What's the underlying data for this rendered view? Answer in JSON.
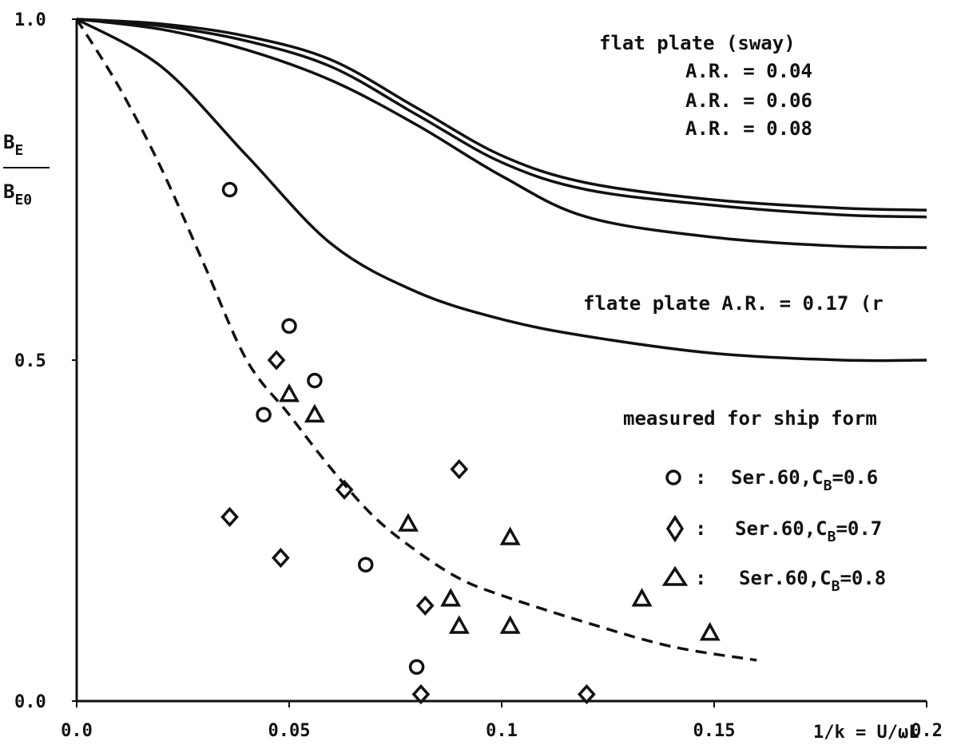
{
  "chart_data": {
    "type": "scatter",
    "xlim": [
      0.0,
      0.2
    ],
    "ylim": [
      0.0,
      1.0
    ],
    "x_ticks": [
      {
        "value": 0.0,
        "label": "0.0"
      },
      {
        "value": 0.05,
        "label": "0.05"
      },
      {
        "value": 0.1,
        "label": "0.1"
      },
      {
        "value": 0.15,
        "label": "0.15"
      },
      {
        "value": 0.2,
        "label": "0.2"
      }
    ],
    "y_ticks": [
      {
        "value": 0.0,
        "label": "0.0"
      },
      {
        "value": 0.5,
        "label": "0.5"
      },
      {
        "value": 1.0,
        "label": "1.0"
      }
    ],
    "xlabel": "1/k = U/ωL",
    "ylabel": {
      "numerator": "B",
      "num_sub": "E",
      "denominator": "B",
      "den_sub": "E0"
    },
    "curves": [
      {
        "name": "A.R. = 0.04",
        "style": "solid",
        "x": [
          0.0,
          0.02,
          0.04,
          0.06,
          0.08,
          0.1,
          0.12,
          0.15,
          0.18,
          0.2
        ],
        "y": [
          1.0,
          0.993,
          0.975,
          0.94,
          0.87,
          0.8,
          0.76,
          0.735,
          0.723,
          0.72
        ]
      },
      {
        "name": "A.R. = 0.06",
        "style": "solid",
        "x": [
          0.0,
          0.02,
          0.04,
          0.06,
          0.08,
          0.1,
          0.12,
          0.15,
          0.18,
          0.2
        ],
        "y": [
          1.0,
          0.99,
          0.968,
          0.93,
          0.86,
          0.79,
          0.75,
          0.727,
          0.713,
          0.71
        ]
      },
      {
        "name": "A.R. = 0.08",
        "style": "solid",
        "x": [
          0.0,
          0.02,
          0.04,
          0.06,
          0.08,
          0.1,
          0.12,
          0.15,
          0.18,
          0.2
        ],
        "y": [
          1.0,
          0.985,
          0.955,
          0.91,
          0.845,
          0.77,
          0.71,
          0.68,
          0.667,
          0.665
        ]
      },
      {
        "name": "flate plate A.R. = 0.17",
        "style": "solid",
        "x": [
          0.0,
          0.02,
          0.04,
          0.06,
          0.08,
          0.1,
          0.12,
          0.15,
          0.18,
          0.2
        ],
        "y": [
          1.0,
          0.93,
          0.8,
          0.67,
          0.6,
          0.56,
          0.535,
          0.51,
          0.5,
          0.5
        ]
      },
      {
        "name": "",
        "style": "dashed",
        "x": [
          0.0,
          0.01,
          0.02,
          0.03,
          0.04,
          0.05,
          0.06,
          0.07,
          0.08,
          0.09,
          0.1,
          0.12,
          0.14,
          0.16
        ],
        "y": [
          1.0,
          0.9,
          0.78,
          0.64,
          0.5,
          0.42,
          0.34,
          0.27,
          0.22,
          0.18,
          0.155,
          0.115,
          0.08,
          0.06
        ]
      }
    ],
    "series": [
      {
        "name": "Ser.60,CB=0.6",
        "marker": "circle",
        "x": [
          0.036,
          0.05,
          0.056,
          0.044,
          0.068,
          0.08
        ],
        "y": [
          0.75,
          0.55,
          0.47,
          0.42,
          0.2,
          0.05
        ]
      },
      {
        "name": "Ser.60,CB=0.7",
        "marker": "diamond",
        "x": [
          0.047,
          0.063,
          0.09,
          0.036,
          0.048,
          0.082,
          0.081,
          0.12
        ],
        "y": [
          0.5,
          0.31,
          0.34,
          0.27,
          0.21,
          0.14,
          0.01,
          0.01
        ]
      },
      {
        "name": "Ser.60,CB=0.8",
        "marker": "triangle",
        "x": [
          0.05,
          0.056,
          0.078,
          0.102,
          0.088,
          0.09,
          0.102,
          0.133,
          0.149
        ],
        "y": [
          0.45,
          0.42,
          0.26,
          0.24,
          0.15,
          0.11,
          0.11,
          0.15,
          0.1
        ]
      }
    ],
    "annotations": {
      "flat_plate_title": "flat plate (sway)",
      "ar1": "A.R. = 0.04",
      "ar2": "A.R. = 0.06",
      "ar3": "A.R. = 0.08",
      "flate_plate": "flate plate A.R. = 0.17 (r",
      "measured": "measured for ship form"
    },
    "legend": [
      {
        "symbol": "O",
        "sep": ":",
        "text": "Ser.60,C",
        "sub": "B",
        "tail": "=0.6"
      },
      {
        "symbol": "◇",
        "sep": ":",
        "text": "Ser.60,C",
        "sub": "B",
        "tail": "=0.7"
      },
      {
        "symbol": "△",
        "sep": ":",
        "text": "Ser.60,C",
        "sub": "B",
        "tail": "=0.8"
      }
    ],
    "grid": false
  }
}
